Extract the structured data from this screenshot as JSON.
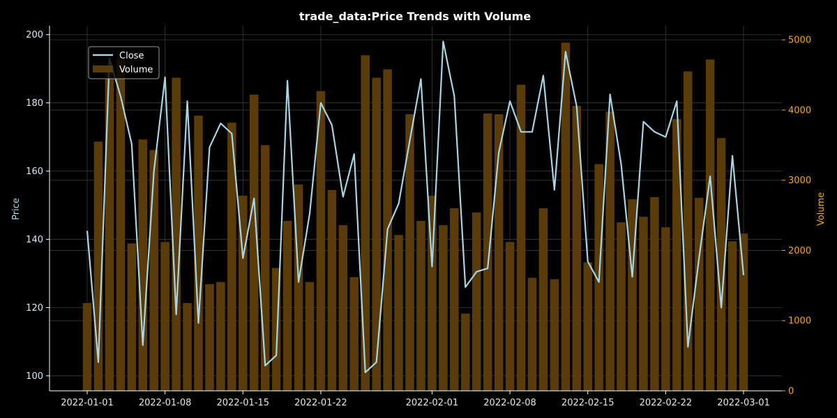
{
  "chart_data": {
    "type": "bar",
    "title": "trade_data:Price Trends with Volume",
    "x": [
      "2022-01-01",
      "2022-01-02",
      "2022-01-03",
      "2022-01-04",
      "2022-01-05",
      "2022-01-06",
      "2022-01-07",
      "2022-01-08",
      "2022-01-09",
      "2022-01-10",
      "2022-01-11",
      "2022-01-12",
      "2022-01-13",
      "2022-01-14",
      "2022-01-15",
      "2022-01-16",
      "2022-01-17",
      "2022-01-18",
      "2022-01-19",
      "2022-01-20",
      "2022-01-21",
      "2022-01-22",
      "2022-01-23",
      "2022-01-24",
      "2022-01-25",
      "2022-01-26",
      "2022-01-27",
      "2022-01-28",
      "2022-01-29",
      "2022-01-30",
      "2022-01-31",
      "2022-02-01",
      "2022-02-02",
      "2022-02-03",
      "2022-02-04",
      "2022-02-05",
      "2022-02-06",
      "2022-02-07",
      "2022-02-08",
      "2022-02-09",
      "2022-02-10",
      "2022-02-11",
      "2022-02-12",
      "2022-02-13",
      "2022-02-14",
      "2022-02-15",
      "2022-02-16",
      "2022-02-17",
      "2022-02-18",
      "2022-02-19",
      "2022-02-20",
      "2022-02-21",
      "2022-02-22",
      "2022-02-23",
      "2022-02-24",
      "2022-02-25",
      "2022-02-26",
      "2022-02-27",
      "2022-02-28",
      "2022-03-01"
    ],
    "x_ticks": [
      "2022-01-01",
      "2022-01-08",
      "2022-01-15",
      "2022-01-22",
      "2022-02-01",
      "2022-02-08",
      "2022-02-15",
      "2022-02-22",
      "2022-03-01"
    ],
    "series": [
      {
        "name": "Close",
        "axis": "left",
        "kind": "line",
        "color": "#a8d5e5",
        "values": [
          142.5,
          104.0,
          193.0,
          182.0,
          168.0,
          109.0,
          160.0,
          187.5,
          118.0,
          180.5,
          115.5,
          167.0,
          174.0,
          171.0,
          134.5,
          152.0,
          103.0,
          106.0,
          186.5,
          127.5,
          147.5,
          180.0,
          173.5,
          152.5,
          165.0,
          101.0,
          104.0,
          143.0,
          150.5,
          169.0,
          187.0,
          132.0,
          198.0,
          182.0,
          126.0,
          130.5,
          131.5,
          165.5,
          180.5,
          171.5,
          171.5,
          188.0,
          154.5,
          195.0,
          179.0,
          133.5,
          127.5,
          182.5,
          162.0,
          129.0,
          174.5,
          171.5,
          170.0,
          180.5,
          108.5,
          134.5,
          158.5,
          120.0,
          164.5,
          129.5
        ]
      },
      {
        "name": "Volume",
        "axis": "right",
        "kind": "bar",
        "color": "#5a3c0a",
        "values": [
          1250,
          3550,
          4560,
          4720,
          2100,
          3580,
          3430,
          2120,
          4460,
          1250,
          3920,
          1520,
          1550,
          3820,
          2780,
          4220,
          3500,
          1750,
          2420,
          2940,
          1550,
          4270,
          2860,
          2360,
          1620,
          4780,
          4460,
          4580,
          2220,
          3940,
          2420,
          2780,
          2360,
          2600,
          1100,
          2540,
          3950,
          3940,
          2120,
          4360,
          1610,
          2600,
          1590,
          4960,
          4060,
          1830,
          3230,
          3980,
          2400,
          2730,
          2480,
          2760,
          2330,
          3870,
          4550,
          2750,
          4720,
          3600,
          2130,
          2240
        ]
      }
    ],
    "y_left": {
      "label": "Price",
      "ticks": [
        100,
        120,
        140,
        160,
        180,
        200
      ],
      "lim": [
        95.6,
        202.6
      ]
    },
    "y_right": {
      "label": "Volume",
      "ticks": [
        0,
        1000,
        2000,
        3000,
        4000,
        5000
      ],
      "lim": [
        0,
        5200
      ]
    },
    "legend": {
      "placement": "upper-left",
      "entries": [
        "Close",
        "Volume"
      ]
    },
    "grid": true,
    "style": {
      "background": "#000000",
      "axis_color": "#ffffff",
      "grid_color": "#3a3a3a",
      "price_color": "#a8d5e5",
      "volume_color": "#5a3c0a",
      "volume_tick_color": "#f5a623"
    }
  }
}
